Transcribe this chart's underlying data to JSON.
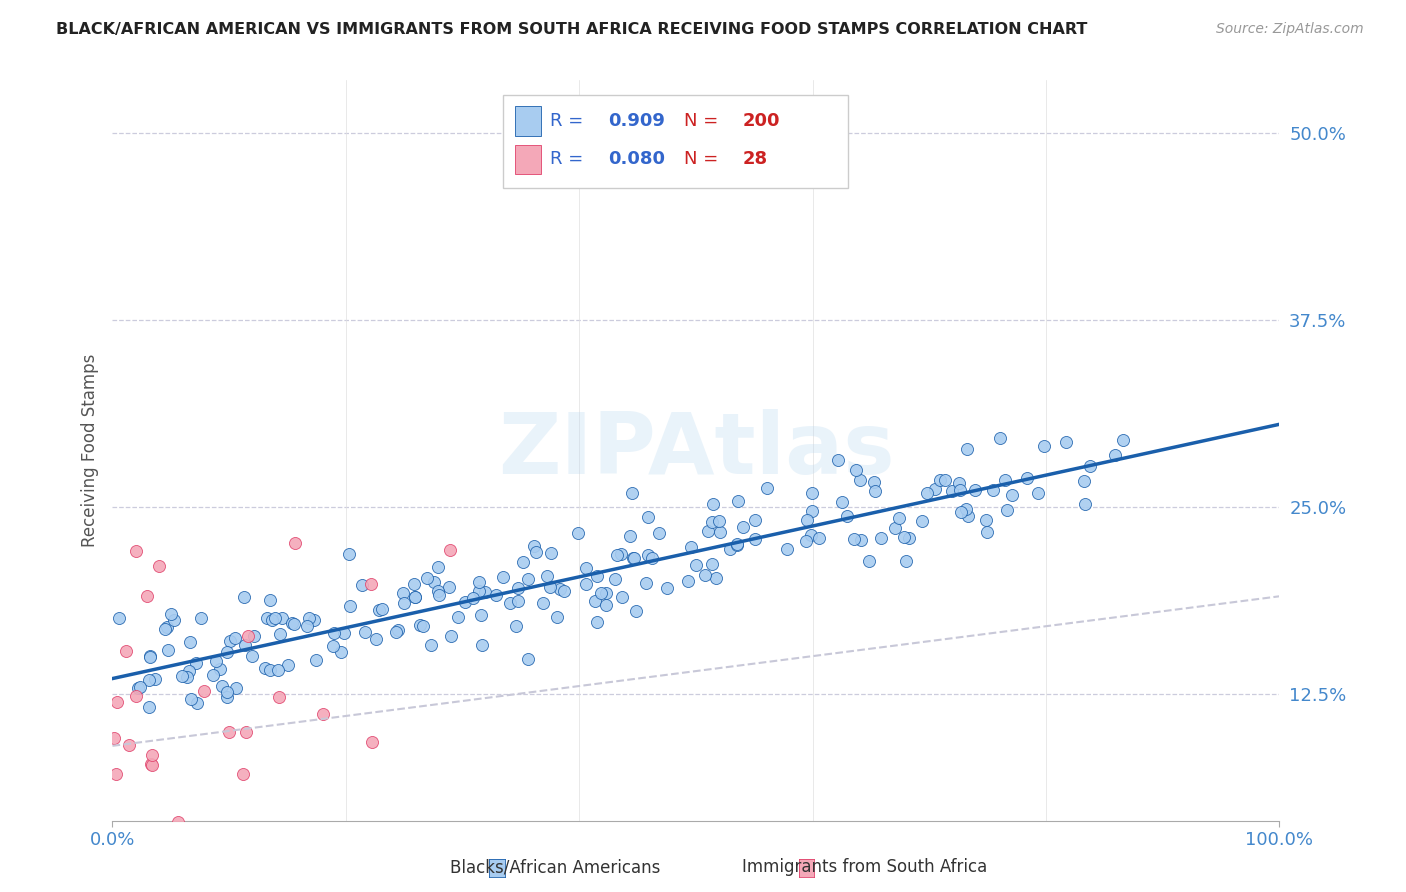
{
  "title": "BLACK/AFRICAN AMERICAN VS IMMIGRANTS FROM SOUTH AFRICA RECEIVING FOOD STAMPS CORRELATION CHART",
  "source": "Source: ZipAtlas.com",
  "ylabel": "Receiving Food Stamps",
  "xlim": [
    0.0,
    1.0
  ],
  "ylim": [
    0.04,
    0.535
  ],
  "yticks": [
    0.125,
    0.25,
    0.375,
    0.5
  ],
  "ytick_labels": [
    "12.5%",
    "25.0%",
    "37.5%",
    "50.0%"
  ],
  "xtick_labels": [
    "0.0%",
    "100.0%"
  ],
  "legend_blue_R": "0.909",
  "legend_blue_N": "200",
  "legend_pink_R": "0.080",
  "legend_pink_N": "28",
  "blue_fill": "#A8CCF0",
  "pink_fill": "#F4A8B8",
  "line_blue": "#1A5FAB",
  "line_pink": "#E0406A",
  "line_dash_color": "#C8C8D8",
  "background": "#FFFFFF",
  "title_color": "#222222",
  "axis_label_color": "#555555",
  "tick_color": "#4488CC",
  "legend_R_color": "#3366CC",
  "legend_N_color": "#CC2222",
  "blue_line_intercept": 0.135,
  "blue_line_slope": 0.17,
  "pink_line_intercept": 0.09,
  "pink_line_slope": 0.1
}
